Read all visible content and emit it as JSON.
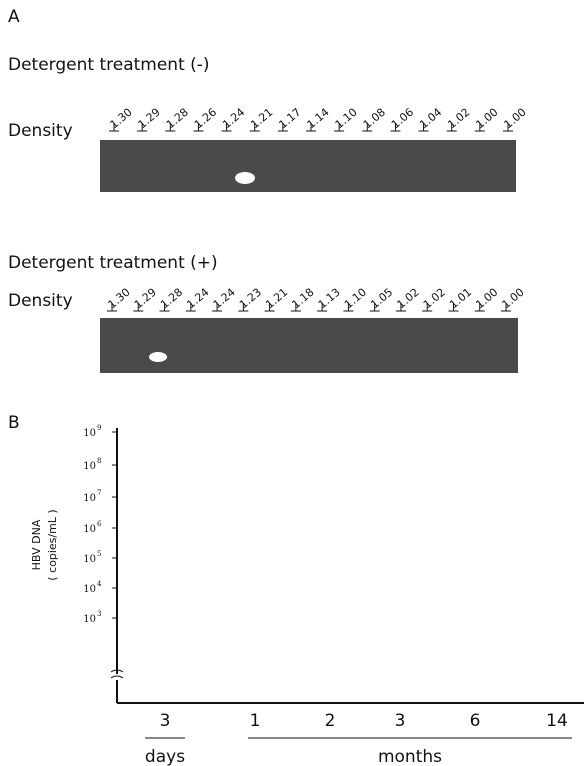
{
  "panel_a": {
    "label": "A",
    "blots": [
      {
        "title": "Detergent treatment (-)",
        "density_label": "Density",
        "densities": [
          "1.30",
          "1.29",
          "1.28",
          "1.26",
          "1.24",
          "1.21",
          "1.17",
          "1.14",
          "1.10",
          "1.08",
          "1.06",
          "1.04",
          "1.02",
          "1.00",
          "1.00"
        ]
      },
      {
        "title": "Detergent treatment (+)",
        "density_label": "Density",
        "densities": [
          "1.30",
          "1.29",
          "1.28",
          "1.24",
          "1.24",
          "1.23",
          "1.21",
          "1.18",
          "1.13",
          "1.10",
          "1.05",
          "1.02",
          "1.02",
          "1.01",
          "1.00",
          "1.00"
        ]
      }
    ]
  },
  "panel_b": {
    "label": "B",
    "y_label": "HBV DNA",
    "y_unit": "( copies/mL )",
    "y_ticks": [
      {
        "base": "10",
        "exponent": "9"
      },
      {
        "base": "10",
        "exponent": "8"
      },
      {
        "base": "10",
        "exponent": "7"
      },
      {
        "base": "10",
        "exponent": "6"
      },
      {
        "base": "10",
        "exponent": "5"
      },
      {
        "base": "10",
        "exponent": "4"
      },
      {
        "base": "10",
        "exponent": "3"
      }
    ],
    "x_ticks": [
      "3",
      "1",
      "2",
      "3",
      "6",
      "14"
    ],
    "x_groups": [
      "days",
      "months"
    ]
  }
}
